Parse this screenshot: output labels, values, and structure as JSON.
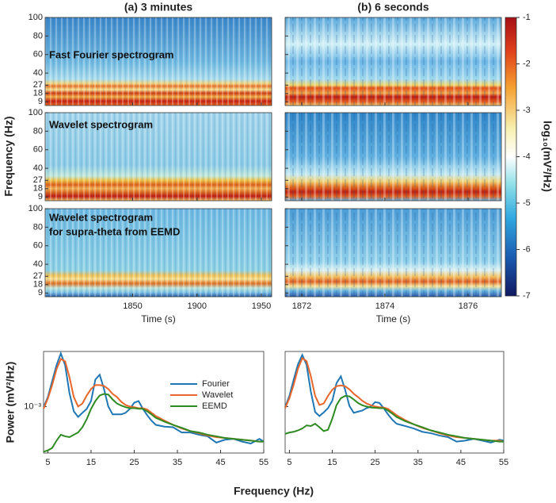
{
  "spectrograms": {
    "ylabel": "Frequency (Hz)",
    "ylim": [
      5,
      100
    ],
    "yticks": [
      9,
      18,
      27,
      40,
      60,
      80,
      100
    ],
    "columns": [
      {
        "title": "(a) 3 minutes",
        "xlabel": "Time (s)",
        "xlim": [
          1782,
          1958
        ],
        "xticks": [
          1850,
          1900,
          1950
        ]
      },
      {
        "title": "(b) 6 seconds",
        "xlabel": "Time (s)",
        "xlim": [
          1871.6,
          1876.8
        ],
        "xticks": [
          1872,
          1874,
          1876
        ]
      }
    ],
    "rows": [
      {
        "label": [
          "Fast Fourier spectrogram"
        ]
      },
      {
        "label": [
          "Wavelet spectrogram"
        ]
      },
      {
        "label": [
          "Wavelet spectrogram",
          "for supra-theta from EEMD"
        ]
      }
    ],
    "colorbar": {
      "label": "log₁₀(mV²/Hz)",
      "lim": [
        -7,
        -1
      ],
      "ticks": [
        -1,
        -2,
        -3,
        -4,
        -5,
        -6,
        -7
      ]
    }
  },
  "chart_data": [
    {
      "type": "line",
      "ylabel": "Power (mV²/Hz)",
      "xlabel": "Frequency (Hz)",
      "log_y": true,
      "legend": "top right",
      "x": [
        4,
        5,
        6,
        7,
        8,
        9,
        10,
        11,
        12,
        13,
        14,
        15,
        16,
        17,
        18,
        19,
        20,
        21,
        22,
        23,
        24,
        25,
        26,
        27,
        28,
        29,
        30,
        32,
        34,
        36,
        38,
        40,
        42,
        44,
        46,
        48,
        50,
        52,
        54,
        55
      ],
      "xlim": [
        4,
        55
      ],
      "xticks": [
        5,
        15,
        25,
        35,
        45,
        55
      ],
      "ylim": [
        0.00023,
        0.0057
      ],
      "yticks": [
        {
          "value": 0.001,
          "label": "10⁻³"
        }
      ],
      "series": [
        {
          "name": "Fourier",
          "color": "#1f77b4",
          "values": [
            0.000975,
            0.00135,
            0.00223,
            0.00368,
            0.00536,
            0.00368,
            0.00153,
            0.00086,
            0.00072,
            0.00082,
            0.00093,
            0.00119,
            0.00235,
            0.00273,
            0.00174,
            0.001,
            0.00078,
            0.00078,
            0.00078,
            0.00082,
            0.00093,
            0.00113,
            0.00119,
            0.00093,
            0.00076,
            0.00064,
            0.00056,
            0.00053,
            0.00052,
            0.00044,
            0.00044,
            0.00041,
            0.00039,
            0.00032,
            0.00035,
            0.00036,
            0.00033,
            0.00031,
            0.00036,
            0.00033
          ]
        },
        {
          "name": "Wavelet",
          "color": "#e8662a",
          "values": [
            0.00093,
            0.00129,
            0.00197,
            0.00325,
            0.0045,
            0.00417,
            0.00253,
            0.00135,
            0.001,
            0.0011,
            0.00142,
            0.00174,
            0.00197,
            0.00197,
            0.00192,
            0.00174,
            0.00149,
            0.00135,
            0.00116,
            0.00105,
            0.001,
            0.00098,
            0.00095,
            0.00095,
            0.00091,
            0.00082,
            0.00074,
            0.00064,
            0.00056,
            0.0005,
            0.00046,
            0.00043,
            0.0004,
            0.00038,
            0.00037,
            0.00036,
            0.00035,
            0.00034,
            0.00033,
            0.00033
          ]
        },
        {
          "name": "EEMD",
          "color": "#2e8b22",
          "values": [
            0.00024,
            0.00025,
            0.00027,
            0.00034,
            0.00041,
            0.00039,
            0.00038,
            0.00041,
            0.00044,
            0.00052,
            0.00067,
            0.00093,
            0.00119,
            0.00142,
            0.00149,
            0.00146,
            0.00125,
            0.0011,
            0.00103,
            0.00098,
            0.00095,
            0.00095,
            0.00093,
            0.00093,
            0.00086,
            0.00078,
            0.0007,
            0.00062,
            0.00056,
            0.00051,
            0.00046,
            0.00044,
            0.00041,
            0.00039,
            0.00037,
            0.00036,
            0.00035,
            0.00034,
            0.00033,
            0.00033
          ]
        }
      ]
    },
    {
      "type": "line",
      "log_y": true,
      "x": [
        4,
        5,
        6,
        7,
        8,
        9,
        10,
        11,
        12,
        13,
        14,
        15,
        16,
        17,
        18,
        19,
        20,
        21,
        22,
        23,
        24,
        25,
        26,
        27,
        28,
        29,
        30,
        32,
        34,
        36,
        38,
        40,
        42,
        44,
        46,
        48,
        50,
        52,
        54,
        55
      ],
      "xlim": [
        4,
        55
      ],
      "xticks": [
        5,
        15,
        25,
        35,
        45,
        55
      ],
      "ylim": [
        0.00023,
        0.0057
      ],
      "yticks": [
        0.001
      ],
      "series": [
        {
          "name": "Fourier",
          "color": "#1f77b4",
          "values": [
            0.00098,
            0.0014,
            0.00235,
            0.0038,
            0.0051,
            0.00375,
            0.0016,
            0.00084,
            0.00074,
            0.00083,
            0.00095,
            0.0012,
            0.0021,
            0.0026,
            0.0017,
            0.00102,
            0.00082,
            0.00085,
            0.00088,
            0.00095,
            0.001,
            0.00115,
            0.00112,
            0.00095,
            0.00078,
            0.00066,
            0.00058,
            0.00054,
            0.0005,
            0.00045,
            0.00043,
            0.0004,
            0.00038,
            0.00033,
            0.00034,
            0.00036,
            0.00034,
            0.00032,
            0.00035,
            0.00034
          ]
        },
        {
          "name": "Wavelet",
          "color": "#e8662a",
          "values": [
            0.00095,
            0.0013,
            0.002,
            0.0033,
            0.0046,
            0.0042,
            0.0026,
            0.0014,
            0.00105,
            0.0011,
            0.0014,
            0.0017,
            0.0019,
            0.00195,
            0.0019,
            0.00172,
            0.0015,
            0.00135,
            0.0012,
            0.0011,
            0.00104,
            0.001,
            0.00098,
            0.00097,
            0.00093,
            0.00084,
            0.00076,
            0.00065,
            0.00057,
            0.00051,
            0.00047,
            0.00043,
            0.0004,
            0.00038,
            0.00037,
            0.00036,
            0.00035,
            0.00034,
            0.00034,
            0.00033
          ]
        },
        {
          "name": "EEMD",
          "color": "#2e8b22",
          "values": [
            0.00042,
            0.00044,
            0.00045,
            0.00047,
            0.0005,
            0.00055,
            0.00054,
            0.00058,
            0.00052,
            0.00046,
            0.00048,
            0.00068,
            0.00105,
            0.0013,
            0.0014,
            0.00138,
            0.00125,
            0.00112,
            0.00104,
            0.001,
            0.00097,
            0.00096,
            0.00095,
            0.00095,
            0.00088,
            0.0008,
            0.00072,
            0.00063,
            0.00057,
            0.00052,
            0.00047,
            0.00044,
            0.00041,
            0.00039,
            0.00037,
            0.00036,
            0.00035,
            0.00034,
            0.00033,
            0.00033
          ]
        }
      ]
    }
  ]
}
